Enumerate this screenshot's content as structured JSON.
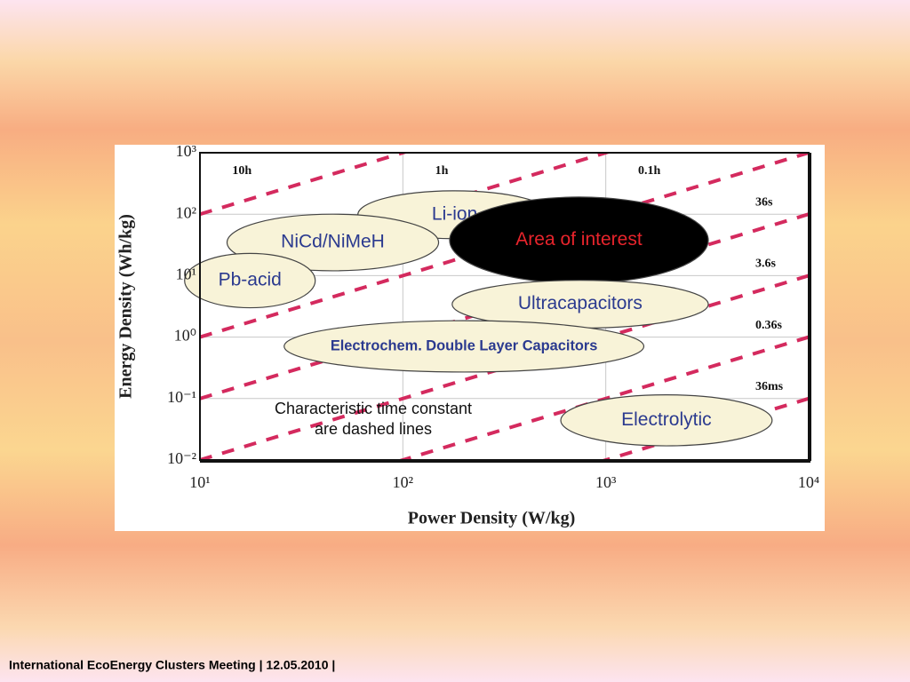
{
  "footer": "International EcoEnergy Clusters Meeting | 12.05.2010 |",
  "chart_data": {
    "type": "ragone",
    "xlabel": "Power Density (W/kg)",
    "ylabel": "Energy Density (Wh/kg)",
    "log_x": true,
    "log_y": true,
    "grid": true,
    "xlim": [
      10,
      10000
    ],
    "ylim": [
      0.01,
      1000
    ],
    "xticks": [
      {
        "value": 10,
        "label": "10¹"
      },
      {
        "value": 100,
        "label": "10²"
      },
      {
        "value": 1000,
        "label": "10³"
      },
      {
        "value": 10000,
        "label": "10⁴"
      }
    ],
    "yticks": [
      {
        "value": 0.01,
        "label": "10⁻²"
      },
      {
        "value": 0.1,
        "label": "10⁻¹"
      },
      {
        "value": 1,
        "label": "10⁰"
      },
      {
        "value": 10,
        "label": "10¹"
      },
      {
        "value": 100,
        "label": "10²"
      },
      {
        "value": 1000,
        "label": "10³"
      }
    ],
    "time_constants": [
      {
        "label": "10h",
        "value": 10
      },
      {
        "label": "1h",
        "value": 1
      },
      {
        "label": "0.1h",
        "value": 0.1
      },
      {
        "label": "36s",
        "value": 0.01
      },
      {
        "label": "3.6s",
        "value": 0.001
      },
      {
        "label": "0.36s",
        "value": 0.0001
      },
      {
        "label": "36ms",
        "value": 1e-05
      }
    ],
    "line_color": "#d42a5e",
    "regions": [
      {
        "name": "Li-ion",
        "x": [
          60,
          540
        ],
        "y": [
          40,
          240
        ],
        "color": "#f8f3d8",
        "label_color": "#2b3a8f"
      },
      {
        "name": "NiCd/NiMeH",
        "x": [
          13.6,
          150
        ],
        "y": [
          12,
          100
        ],
        "color": "#f8f3d8",
        "label_color": "#2b3a8f"
      },
      {
        "name": "Pb-acid",
        "x": [
          8.4,
          37
        ],
        "y": [
          3,
          23
        ],
        "color": "#f8f3d8",
        "label_color": "#2b3a8f"
      },
      {
        "name": "Area of interest",
        "x": [
          170,
          3200
        ],
        "y": [
          7.5,
          190
        ],
        "color": "#000000",
        "label_color": "#e8242c"
      },
      {
        "name": "Ultracapacitors",
        "x": [
          175,
          3200
        ],
        "y": [
          1.4,
          8.4
        ],
        "color": "#f8f3d8",
        "label_color": "#2b3a8f"
      },
      {
        "name": "Electrochem. Double Layer Capacitors",
        "x": [
          26,
          1540
        ],
        "y": [
          0.27,
          1.85
        ],
        "color": "#f8f3d8",
        "label_color": "#2b3a8f"
      },
      {
        "name": "Electrolytic",
        "x": [
          600,
          6600
        ],
        "y": [
          0.017,
          0.115
        ],
        "color": "#f8f3d8",
        "label_color": "#2b3a8f"
      }
    ],
    "annotation": [
      "Characteristic time constant",
      "are dashed lines"
    ]
  }
}
